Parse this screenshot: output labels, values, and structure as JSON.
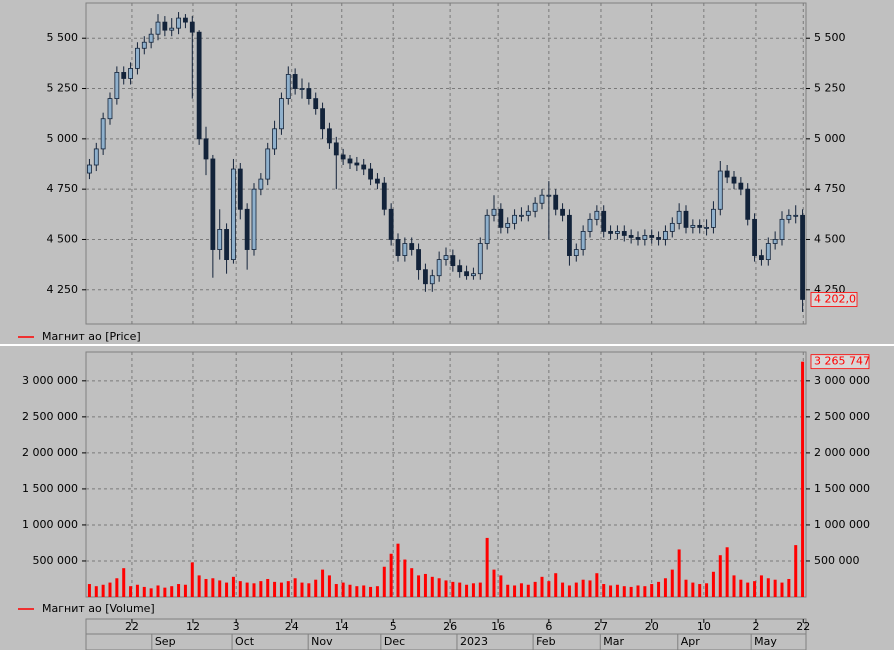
{
  "chart_data": [
    {
      "type": "candlestick",
      "series": [
        {
          "name": "Магнит ао [Price]",
          "color": "#ff0000"
        }
      ],
      "up_color": "#8fb0cc",
      "down_color": "#13233a",
      "xlim": [
        0,
        105
      ],
      "ylim": [
        4080,
        5675
      ],
      "yticks": [
        {
          "value": 4250,
          "label": "4 250"
        },
        {
          "value": 4500,
          "label": "4 500"
        },
        {
          "value": 4750,
          "label": "4 750"
        },
        {
          "value": 5000,
          "label": "5 000"
        },
        {
          "value": 5250,
          "label": "5 250"
        },
        {
          "value": 5500,
          "label": "5 500"
        }
      ],
      "grid": true,
      "last_label": "4 202,0",
      "open": [
        4830,
        4870,
        4950,
        5100,
        5200,
        5330,
        5300,
        5350,
        5450,
        5480,
        5520,
        5580,
        5540,
        5550,
        5600,
        5580,
        5530,
        5000,
        4900,
        4450,
        4550,
        4400,
        4850,
        4650,
        4450,
        4750,
        4800,
        4950,
        5050,
        5200,
        5320,
        5250,
        5250,
        5200,
        5150,
        5050,
        4980,
        4920,
        4900,
        4880,
        4870,
        4850,
        4800,
        4780,
        4650,
        4500,
        4420,
        4480,
        4450,
        4350,
        4280,
        4320,
        4400,
        4420,
        4370,
        4340,
        4320,
        4330,
        4480,
        4620,
        4650,
        4560,
        4580,
        4620,
        4620,
        4640,
        4680,
        4720,
        4720,
        4650,
        4620,
        4420,
        4450,
        4540,
        4600,
        4640,
        4540,
        4530,
        4540,
        4520,
        4510,
        4500,
        4520,
        4510,
        4500,
        4540,
        4580,
        4640,
        4560,
        4570,
        4560,
        4560,
        4650,
        4840,
        4810,
        4780,
        4750,
        4600,
        4420,
        4400,
        4480,
        4500,
        4600,
        4620,
        4620
      ],
      "high": [
        4900,
        4980,
        5130,
        5230,
        5360,
        5360,
        5380,
        5480,
        5510,
        5550,
        5620,
        5610,
        5600,
        5630,
        5620,
        5610,
        5540,
        5060,
        4920,
        4650,
        4580,
        4900,
        4880,
        4680,
        4780,
        4830,
        4980,
        5090,
        5230,
        5360,
        5350,
        5300,
        5280,
        5230,
        5180,
        5080,
        5010,
        4950,
        4920,
        4910,
        4900,
        4880,
        4830,
        4810,
        4680,
        4530,
        4510,
        4510,
        4480,
        4380,
        4350,
        4440,
        4460,
        4450,
        4400,
        4370,
        4360,
        4510,
        4650,
        4720,
        4680,
        4610,
        4650,
        4660,
        4670,
        4710,
        4750,
        4790,
        4750,
        4680,
        4650,
        4480,
        4570,
        4630,
        4670,
        4670,
        4570,
        4570,
        4570,
        4550,
        4540,
        4550,
        4550,
        4540,
        4570,
        4610,
        4680,
        4670,
        4600,
        4600,
        4600,
        4690,
        4890,
        4870,
        4840,
        4810,
        4780,
        4630,
        4450,
        4510,
        4540,
        4640,
        4650,
        4670,
        4650
      ],
      "low": [
        4800,
        4840,
        4920,
        5070,
        5170,
        5270,
        5270,
        5320,
        5420,
        5450,
        5490,
        5510,
        5510,
        5520,
        5550,
        5200,
        4970,
        4820,
        4310,
        4400,
        4330,
        4380,
        4600,
        4350,
        4420,
        4720,
        4770,
        4920,
        5020,
        5170,
        5220,
        5200,
        5170,
        5120,
        5000,
        4950,
        4750,
        4870,
        4850,
        4840,
        4820,
        4770,
        4750,
        4620,
        4470,
        4390,
        4390,
        4420,
        4300,
        4240,
        4240,
        4290,
        4370,
        4340,
        4310,
        4300,
        4300,
        4300,
        4450,
        4590,
        4530,
        4530,
        4550,
        4590,
        4590,
        4610,
        4650,
        4500,
        4620,
        4590,
        4370,
        4390,
        4420,
        4510,
        4570,
        4510,
        4500,
        4500,
        4490,
        4480,
        4470,
        4470,
        4480,
        4470,
        4470,
        4510,
        4550,
        4530,
        4530,
        4530,
        4520,
        4530,
        4620,
        4780,
        4750,
        4720,
        4570,
        4390,
        4370,
        4370,
        4450,
        4470,
        4580,
        4580,
        4140
      ],
      "close": [
        4870,
        4950,
        5100,
        5200,
        5330,
        5300,
        5350,
        5450,
        5480,
        5520,
        5580,
        5540,
        5550,
        5600,
        5580,
        5530,
        5000,
        4900,
        4450,
        4550,
        4400,
        4850,
        4650,
        4450,
        4750,
        4800,
        4950,
        5050,
        5200,
        5320,
        5250,
        5250,
        5200,
        5150,
        5050,
        4980,
        4920,
        4900,
        4880,
        4870,
        4850,
        4800,
        4780,
        4650,
        4500,
        4420,
        4480,
        4450,
        4350,
        4280,
        4320,
        4400,
        4420,
        4370,
        4340,
        4320,
        4330,
        4480,
        4620,
        4650,
        4560,
        4580,
        4620,
        4620,
        4640,
        4680,
        4720,
        4720,
        4650,
        4620,
        4420,
        4450,
        4540,
        4600,
        4640,
        4540,
        4530,
        4540,
        4520,
        4510,
        4500,
        4520,
        4510,
        4500,
        4540,
        4580,
        4640,
        4560,
        4570,
        4560,
        4560,
        4650,
        4840,
        4810,
        4780,
        4750,
        4600,
        4420,
        4400,
        4480,
        4500,
        4600,
        4620,
        4620,
        4202
      ]
    },
    {
      "type": "bar",
      "series": [
        {
          "name": "Магнит ао [Volume]",
          "color": "#ff0000",
          "values": [
            180000,
            150000,
            170000,
            200000,
            260000,
            400000,
            150000,
            170000,
            140000,
            120000,
            160000,
            130000,
            150000,
            180000,
            170000,
            480000,
            300000,
            250000,
            260000,
            230000,
            200000,
            280000,
            220000,
            200000,
            190000,
            220000,
            250000,
            210000,
            200000,
            220000,
            260000,
            200000,
            190000,
            240000,
            380000,
            300000,
            180000,
            200000,
            170000,
            150000,
            160000,
            140000,
            150000,
            420000,
            600000,
            740000,
            520000,
            400000,
            300000,
            320000,
            280000,
            260000,
            230000,
            210000,
            200000,
            170000,
            190000,
            200000,
            820000,
            380000,
            300000,
            170000,
            160000,
            190000,
            170000,
            210000,
            280000,
            220000,
            330000,
            200000,
            160000,
            200000,
            240000,
            230000,
            330000,
            180000,
            160000,
            170000,
            150000,
            140000,
            160000,
            150000,
            180000,
            210000,
            260000,
            380000,
            660000,
            240000,
            200000,
            180000,
            190000,
            350000,
            580000,
            690000,
            300000,
            240000,
            200000,
            220000,
            300000,
            260000,
            240000,
            200000,
            250000,
            720000,
            3265747
          ]
        }
      ],
      "last_label": "3 265 747",
      "xlim": [
        0,
        105
      ],
      "ylim": [
        0,
        3400000
      ],
      "yticks": [
        {
          "value": 500000,
          "label": "500 000"
        },
        {
          "value": 1000000,
          "label": "1 000 000"
        },
        {
          "value": 1500000,
          "label": "1 500 000"
        },
        {
          "value": 2000000,
          "label": "2 000 000"
        },
        {
          "value": 2500000,
          "label": "2 500 000"
        },
        {
          "value": 3000000,
          "label": "3 000 000"
        }
      ],
      "grid": true,
      "xticks": [
        {
          "value": 6.7,
          "label": "22"
        },
        {
          "value": 15.6,
          "label": "12"
        },
        {
          "value": 21.9,
          "label": "3"
        },
        {
          "value": 30.0,
          "label": "24"
        },
        {
          "value": 37.3,
          "label": "14"
        },
        {
          "value": 44.8,
          "label": "5"
        },
        {
          "value": 53.1,
          "label": "26"
        },
        {
          "value": 60.1,
          "label": "16"
        },
        {
          "value": 67.5,
          "label": "6"
        },
        {
          "value": 75.1,
          "label": "27"
        },
        {
          "value": 82.5,
          "label": "20"
        },
        {
          "value": 90.1,
          "label": "10"
        },
        {
          "value": 97.7,
          "label": "2"
        },
        {
          "value": 104.6,
          "label": "22"
        }
      ],
      "xticks_months": [
        {
          "value": 9.6,
          "label": "Sep"
        },
        {
          "value": 21.3,
          "label": "Oct"
        },
        {
          "value": 32.4,
          "label": "Nov"
        },
        {
          "value": 43.0,
          "label": "Dec"
        },
        {
          "value": 54.1,
          "label": "2023"
        },
        {
          "value": 65.2,
          "label": "Feb"
        },
        {
          "value": 75.0,
          "label": "Mar"
        },
        {
          "value": 86.3,
          "label": "Apr"
        },
        {
          "value": 97.0,
          "label": "May"
        }
      ]
    }
  ]
}
